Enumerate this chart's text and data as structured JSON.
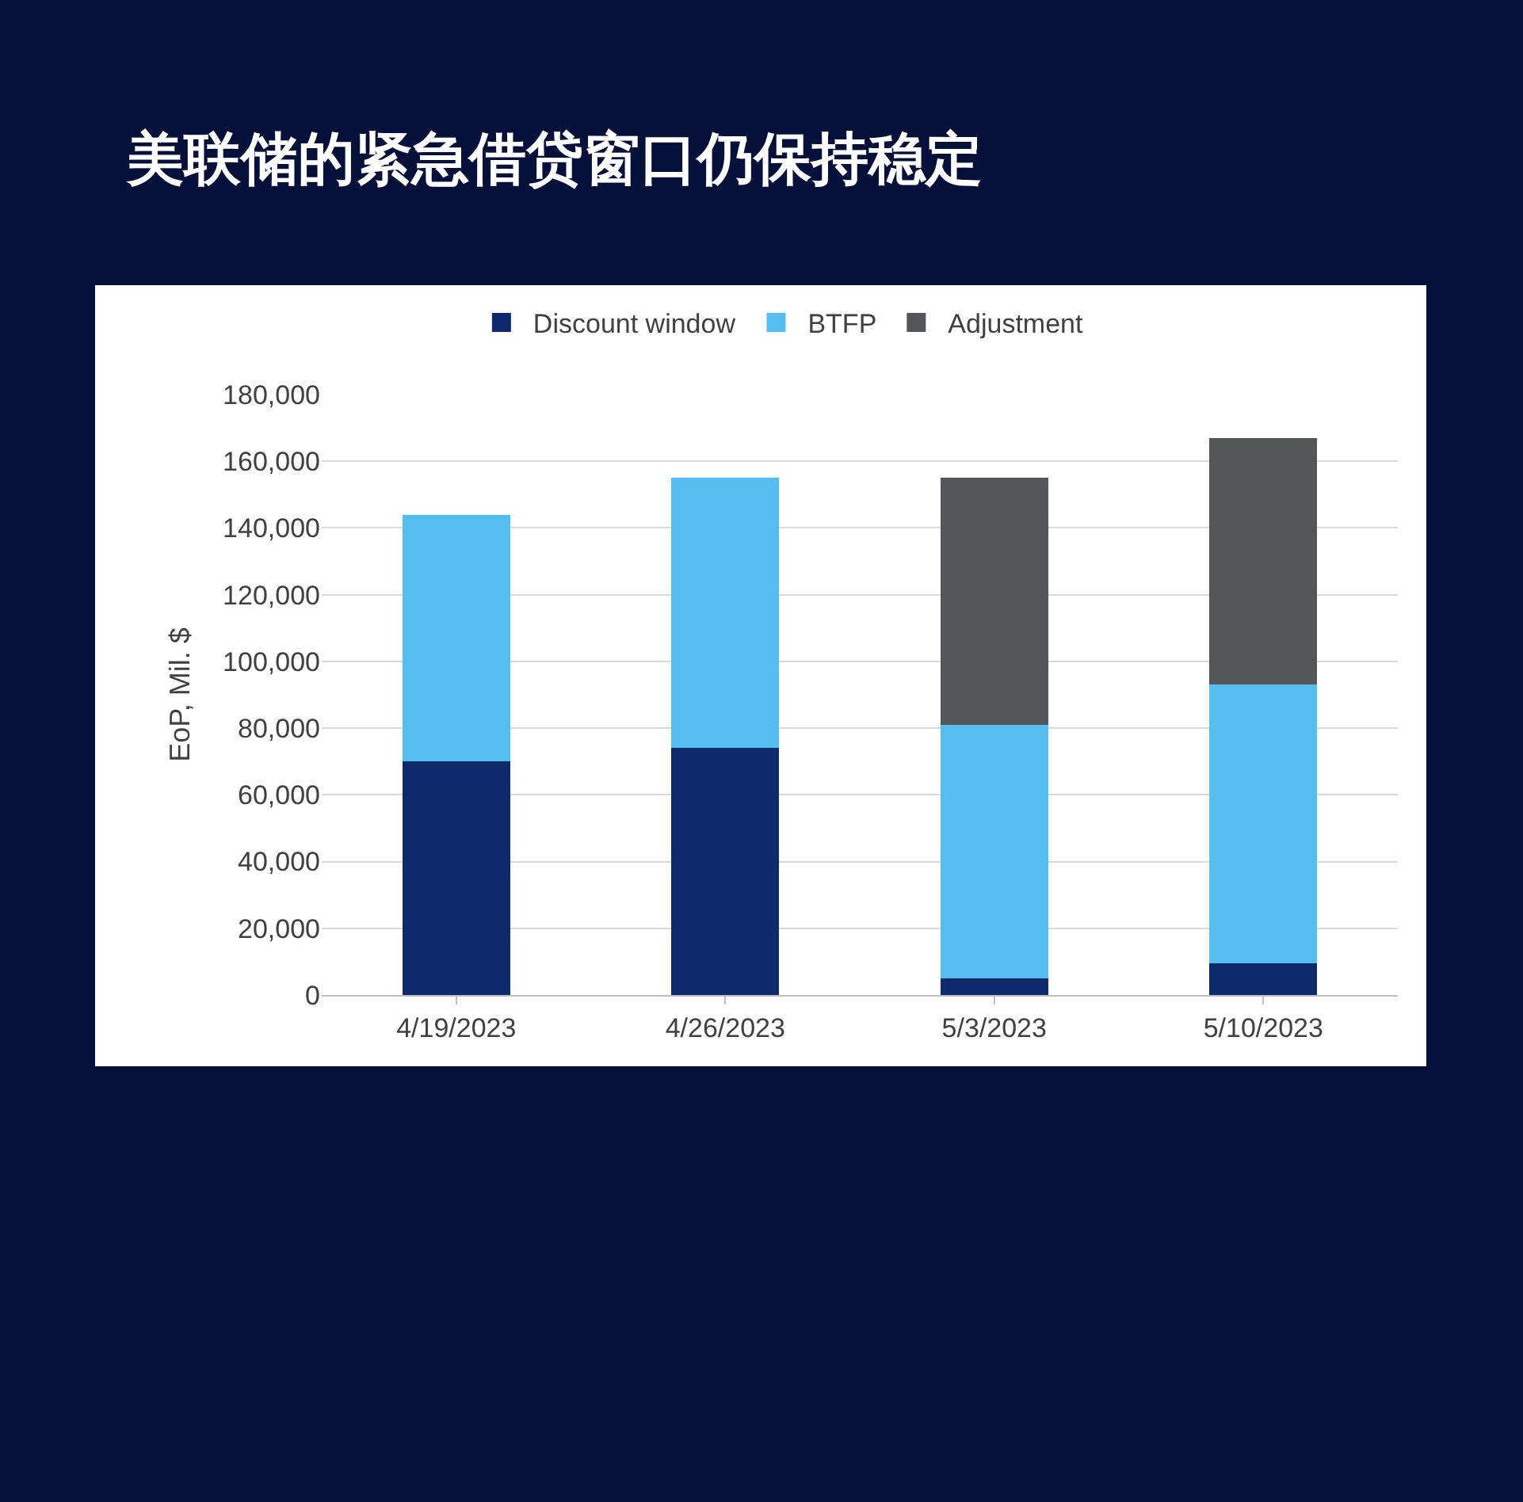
{
  "chart_data": {
    "type": "bar",
    "title": "美联储的紧急借贷窗口仍保持稳定",
    "ylabel": "EoP, Mil. $",
    "categories": [
      "4/19/2023",
      "4/26/2023",
      "5/3/2023",
      "5/10/2023"
    ],
    "stacked": true,
    "series": [
      {
        "name": "Discount window",
        "color": "#0f2a6b",
        "values": [
          70000,
          74000,
          5000,
          9500
        ]
      },
      {
        "name": "BTFP",
        "color": "#56bdf0",
        "values": [
          74000,
          81000,
          76000,
          83500
        ]
      },
      {
        "name": "Adjustment",
        "color": "#545559",
        "values": [
          0,
          0,
          74000,
          74000
        ]
      }
    ],
    "ylim": [
      0,
      180000
    ],
    "yticks": [
      {
        "value": 0,
        "label": "0"
      },
      {
        "value": 20000,
        "label": "20,000"
      },
      {
        "value": 40000,
        "label": "40,000"
      },
      {
        "value": 60000,
        "label": "60,000"
      },
      {
        "value": 80000,
        "label": "80,000"
      },
      {
        "value": 100000,
        "label": "100,000"
      },
      {
        "value": 120000,
        "label": "120,000"
      },
      {
        "value": 140000,
        "label": "140,000"
      },
      {
        "value": 160000,
        "label": "160,000"
      },
      {
        "value": 180000,
        "label": "180,000"
      }
    ],
    "grid": "y",
    "legend": "top"
  }
}
